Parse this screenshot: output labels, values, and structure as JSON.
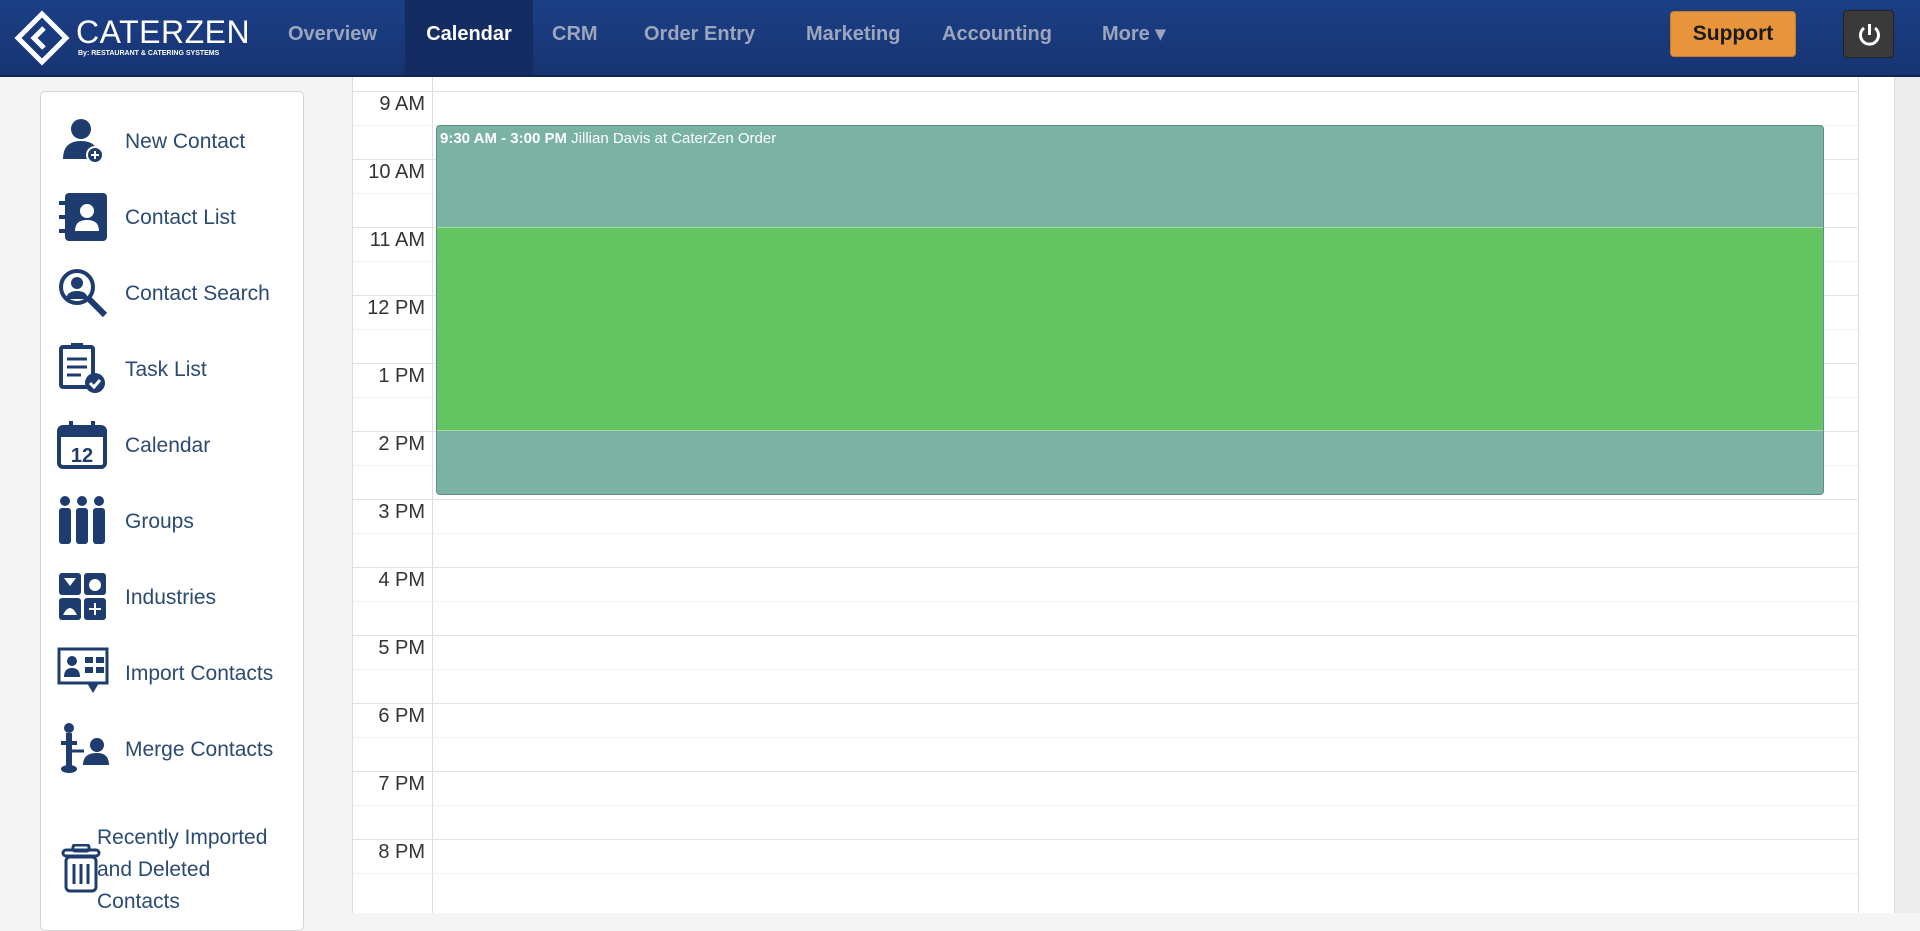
{
  "header": {
    "logo": {
      "name": "CATERZEN",
      "subtitle": "By: RESTAURANT & CATERING SYSTEMS"
    },
    "nav": [
      {
        "label": "Overview",
        "active": false
      },
      {
        "label": "Calendar",
        "active": true
      },
      {
        "label": "CRM",
        "active": false
      },
      {
        "label": "Order Entry",
        "active": false
      },
      {
        "label": "Marketing",
        "active": false
      },
      {
        "label": "Accounting",
        "active": false
      },
      {
        "label": "More ▾",
        "active": false
      }
    ],
    "support_label": "Support",
    "power_icon": "power-icon"
  },
  "sidebar": {
    "items": [
      {
        "label": "New Contact",
        "icon": "add-user-icon"
      },
      {
        "label": "Contact List",
        "icon": "contact-book-icon"
      },
      {
        "label": "Contact Search",
        "icon": "contact-search-icon"
      },
      {
        "label": "Task List",
        "icon": "clipboard-check-icon"
      },
      {
        "label": "Calendar",
        "icon": "calendar-icon"
      },
      {
        "label": "Groups",
        "icon": "groups-icon"
      },
      {
        "label": "Industries",
        "icon": "industries-icon"
      },
      {
        "label": "Import Contacts",
        "icon": "import-icon"
      },
      {
        "label": "Merge Contacts",
        "icon": "merge-icon"
      },
      {
        "label": "Recently Imported and Deleted Contacts",
        "icon": "trash-icon"
      }
    ]
  },
  "calendar": {
    "hours": [
      "9 AM",
      "10 AM",
      "11 AM",
      "12 PM",
      "1 PM",
      "2 PM",
      "3 PM",
      "4 PM",
      "5 PM",
      "6 PM",
      "7 PM",
      "8 PM"
    ],
    "event": {
      "time": "9:30 AM - 3:00 PM",
      "title": "Jillian Davis at CaterZen Order",
      "color": "#7ab3a3",
      "highlight_color": "#63c462"
    }
  },
  "colors": {
    "header": "#1b3f86",
    "support": "#e8943a",
    "text": "#2b4a73"
  }
}
